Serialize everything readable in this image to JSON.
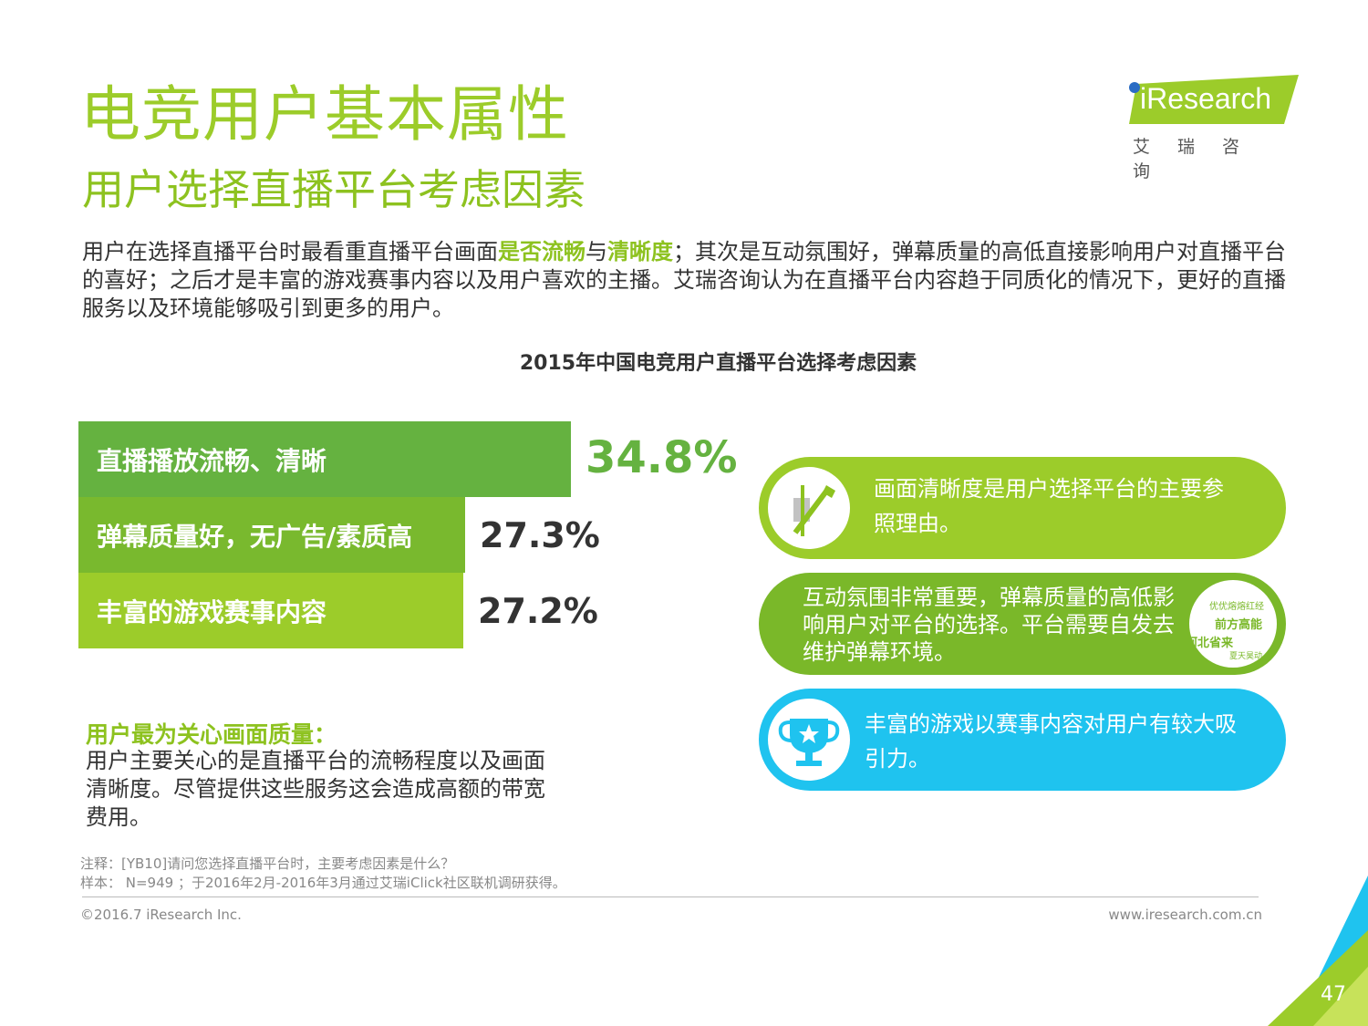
{
  "page": {
    "title": "电竞用户基本属性",
    "subtitle": "用户选择直播平台考虑因素",
    "logo": {
      "brand": "iResearch",
      "brand_cn": "艾瑞咨询"
    },
    "intro": {
      "p1": "用户在选择直播平台时最看重直播平台画面",
      "hl1": "是否流畅",
      "p2": "与",
      "hl2": "清晰度",
      "p3": "；其次是互动氛围好，弹幕质量的高低直接影响用户对直播平台的喜好；之后才是丰富的游戏赛事内容以及用户喜欢的主播。艾瑞咨询认为在直播平台内容趋于同质化的情况下，更好的直播服务以及环境能够吸引到更多的用户。"
    },
    "note": {
      "heading": "用户最为关心画面质量：",
      "body": "用户主要关心的是直播平台的流畅程度以及画面清晰度。尽管提供这些服务这会造成高额的带宽费用。"
    },
    "callouts": [
      {
        "text": "画面清晰度是用户选择平台的主要参照理由。",
        "color": "#9ccc2a",
        "icon": "pen-icon"
      },
      {
        "text": "互动氛围非常重要，弹幕质量的高低影响用户对平台的选择。平台需要自发去维护弹幕环境。",
        "color": "#7ab829",
        "icon": "danmaku-icon",
        "icon_words": [
          "优优熔熔红经",
          "前方高能",
          "河北省来",
          "夏天昊动"
        ]
      },
      {
        "text": "丰富的游戏以赛事内容对用户有较大吸引力。",
        "color": "#1fc3ef",
        "icon": "trophy-icon"
      }
    ],
    "footnotes": {
      "note": "注释：[YB10]请问您选择直播平台时，主要考虑因素是什么？",
      "sample": "样本： N=949 ；于2016年2月-2016年3月通过艾瑞iClick社区联机调研获得。",
      "copyright": "©2016.7 iResearch Inc.",
      "website": "www.iresearch.com.cn",
      "page_number": "47"
    }
  },
  "chart_data": {
    "type": "bar",
    "title": "2015年中国电竞用户直播平台选择考虑因素",
    "categories": [
      "直播播放流畅、清晰",
      "弹幕质量好，无广告/素质高",
      "丰富的游戏赛事内容"
    ],
    "values": [
      34.8,
      27.3,
      27.2
    ],
    "value_labels": [
      "34.8%",
      "27.3%",
      "27.2%"
    ],
    "colors": [
      "#65b240",
      "#79b92e",
      "#9ccc2a"
    ],
    "orientation": "horizontal"
  }
}
